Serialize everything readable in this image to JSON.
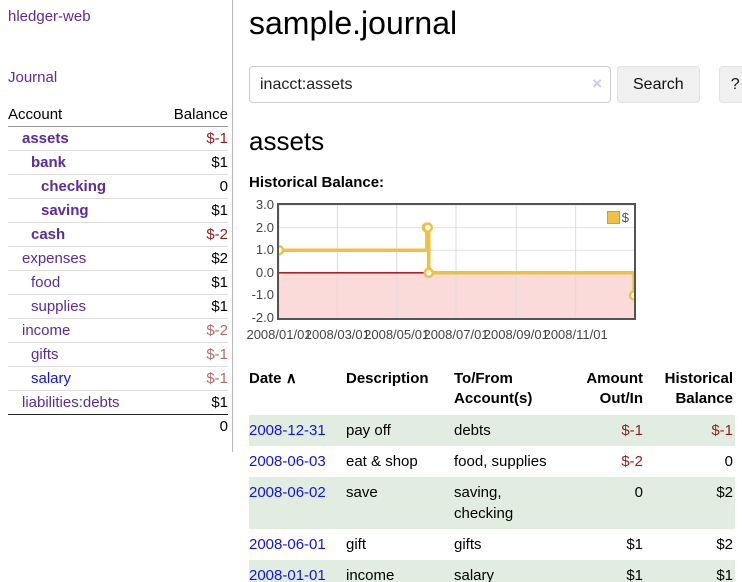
{
  "sidebar": {
    "app_title": "hledger-web",
    "nav_journal": "Journal",
    "account_header": "Account",
    "balance_header": "Balance",
    "accounts": [
      {
        "name": "assets",
        "balance": "$-1"
      },
      {
        "name": "bank",
        "balance": "$1"
      },
      {
        "name": "checking",
        "balance": "0"
      },
      {
        "name": "saving",
        "balance": "$1"
      },
      {
        "name": "cash",
        "balance": "$-2"
      },
      {
        "name": "expenses",
        "balance": "$2"
      },
      {
        "name": "food",
        "balance": "$1"
      },
      {
        "name": "supplies",
        "balance": "$1"
      },
      {
        "name": "income",
        "balance": "$-2"
      },
      {
        "name": "gifts",
        "balance": "$-1"
      },
      {
        "name": "salary",
        "balance": "$-1"
      },
      {
        "name": "liabilities:debts",
        "balance": "$1"
      }
    ],
    "total": "0"
  },
  "header": {
    "title": "sample.journal"
  },
  "search": {
    "query": "inacct:assets",
    "clear_icon": "×",
    "button_label": "Search",
    "help_label": "?"
  },
  "register": {
    "heading": "assets",
    "chart_title": "Historical Balance:",
    "table": {
      "headers": {
        "date": "Date",
        "sort_icon": "∧",
        "description": "Description",
        "tofrom": "To/From Account(s)",
        "amount": "Amount Out/In",
        "balance": "Historical Balance"
      },
      "rows": [
        {
          "date": "2008-12-31",
          "description": "pay off",
          "tofrom": "debts",
          "amount": "$-1",
          "balance": "$-1"
        },
        {
          "date": "2008-06-03",
          "description": "eat & shop",
          "tofrom": "food, supplies",
          "amount": "$-2",
          "balance": "0"
        },
        {
          "date": "2008-06-02",
          "description": "save",
          "tofrom": "saving, checking",
          "amount": "0",
          "balance": "$2"
        },
        {
          "date": "2008-06-01",
          "description": "gift",
          "tofrom": "gifts",
          "amount": "$1",
          "balance": "$2"
        },
        {
          "date": "2008-01-01",
          "description": "income",
          "tofrom": "salary",
          "amount": "$1",
          "balance": "$1"
        }
      ]
    }
  },
  "chart_data": {
    "type": "line",
    "step": true,
    "title": "Historical Balance:",
    "xlim": [
      "2008-01-01",
      "2008-12-31"
    ],
    "ylim": [
      -2.0,
      3.0
    ],
    "y_ticks": [
      3.0,
      2.0,
      1.0,
      0.0,
      -1.0,
      -2.0
    ],
    "x_ticks": [
      "2008/01/01",
      "2008/03/01",
      "2008/05/01",
      "2008/07/01",
      "2008/09/01",
      "2008/11/01"
    ],
    "series": [
      {
        "name": "$",
        "color": "#edc240",
        "points": [
          [
            "2008-01-01",
            1
          ],
          [
            "2008-06-01",
            2
          ],
          [
            "2008-06-02",
            2
          ],
          [
            "2008-06-03",
            0
          ],
          [
            "2008-12-31",
            -1
          ]
        ]
      }
    ],
    "legend": {
      "label": "$",
      "position": "top-right"
    },
    "grid": true,
    "negative_region_color": "#fbdada",
    "zero_line_color": "#aa0000"
  },
  "colors": {
    "link_purple": "#5a2ca0",
    "link_blue": "#1414dd",
    "negative_dark": "#8f1f1f",
    "negative_light": "#b36b6b",
    "row_stripe_green": "#e2ede1",
    "chart_line_gold": "#edc240",
    "chart_negative_fill": "#fbdada",
    "chart_zero_line": "#aa0000"
  }
}
